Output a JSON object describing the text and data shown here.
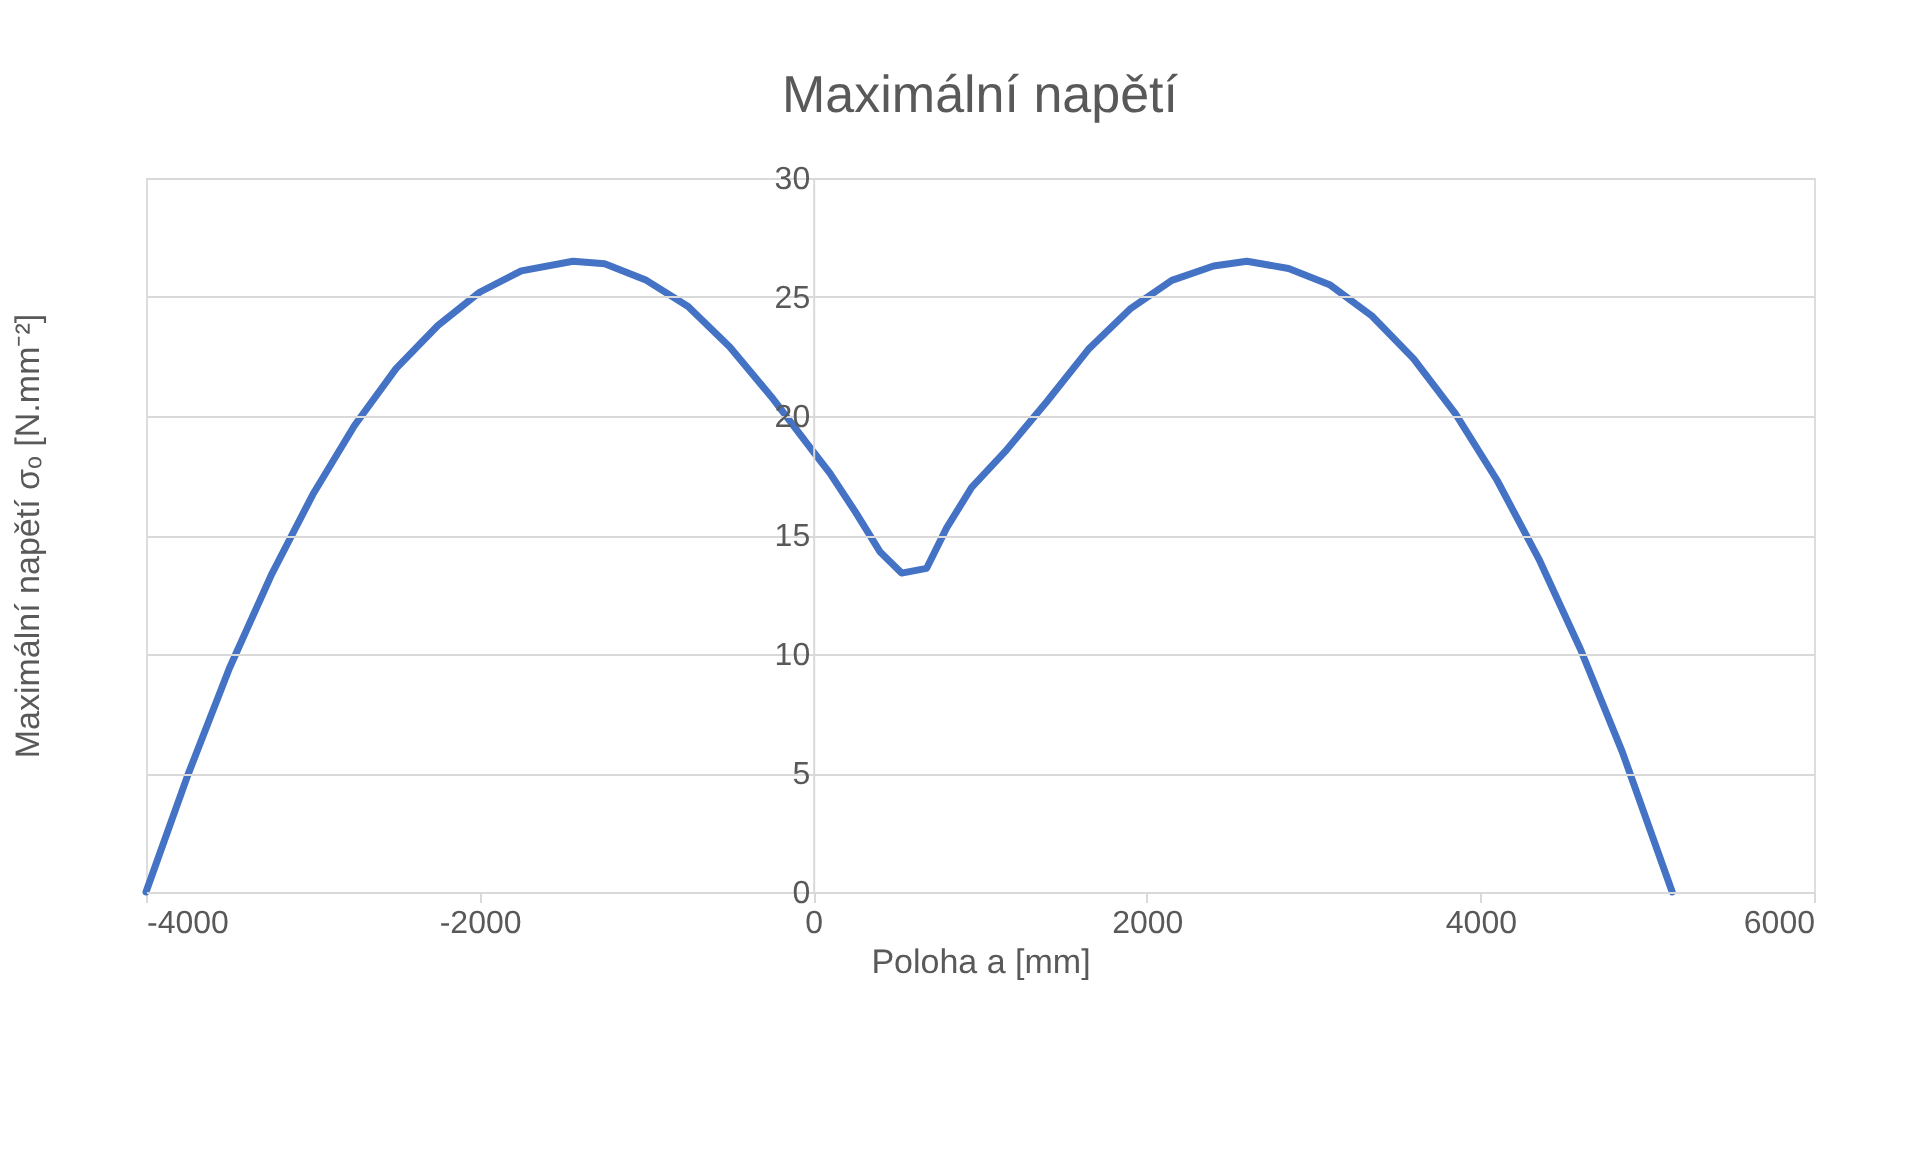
{
  "chart_data": {
    "type": "line",
    "title": "Maximální napětí",
    "xlabel": "Poloha a [mm]",
    "ylabel": "Maximální napětí σₒ [N.mm⁻²]",
    "series": [
      {
        "color": "#4472c4",
        "x": [
          -4000,
          -3750,
          -3500,
          -3250,
          -3000,
          -2750,
          -2500,
          -2250,
          -2000,
          -1750,
          -1440,
          -1250,
          -1000,
          -750,
          -500,
          -250,
          0,
          100,
          250,
          400,
          530,
          680,
          800,
          950,
          1150,
          1400,
          1650,
          1900,
          2150,
          2400,
          2600,
          2850,
          3100,
          3350,
          3600,
          3850,
          4100,
          4350,
          4600,
          4850,
          5150
        ],
        "values": [
          0,
          4.9,
          9.4,
          13.3,
          16.7,
          19.6,
          22.0,
          23.8,
          25.2,
          26.1,
          26.5,
          26.4,
          25.7,
          24.6,
          22.9,
          20.8,
          18.5,
          17.6,
          16.0,
          14.3,
          13.4,
          13.6,
          15.3,
          17.0,
          18.5,
          20.6,
          22.8,
          24.5,
          25.7,
          26.3,
          26.5,
          26.2,
          25.5,
          24.2,
          22.4,
          20.1,
          17.3,
          14.0,
          10.2,
          5.9,
          0
        ]
      }
    ],
    "xlim": [
      -4000,
      6000
    ],
    "xticks": [
      -4000,
      -2000,
      0,
      2000,
      4000,
      6000
    ],
    "ylim": [
      0,
      30
    ],
    "yticks": [
      0,
      5,
      10,
      15,
      20,
      25,
      30
    ],
    "grid": "y",
    "marker": "none",
    "line_style": "solid"
  }
}
